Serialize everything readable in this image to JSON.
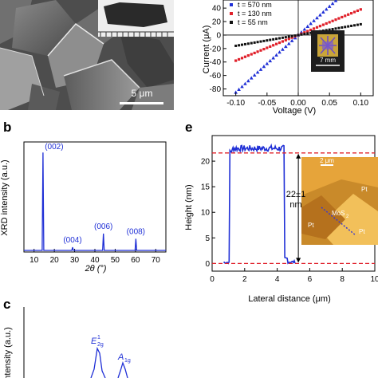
{
  "panel_a": {
    "scale_bar": "5 μm"
  },
  "panel_b": {
    "letter": "b",
    "ylabel": "XRD intensity (a.u.)",
    "xlabel": "2θ (°)",
    "xticks": [
      "10",
      "20",
      "30",
      "40",
      "50",
      "60",
      "70"
    ],
    "peaks": [
      {
        "label": "(002)",
        "x": 14.4,
        "h": 0.93
      },
      {
        "label": "(004)",
        "x": 29.0,
        "h": 0.03
      },
      {
        "label": "(006)",
        "x": 44.2,
        "h": 0.16
      },
      {
        "label": "(008)",
        "x": 60.2,
        "h": 0.11
      }
    ],
    "color": "#1f2fd6"
  },
  "panel_c": {
    "letter": "c",
    "ylabel": "Intensity (a.u.)",
    "peak_labels": [
      "E",
      "1",
      "2g",
      "A",
      "1g"
    ]
  },
  "panel_d": {
    "ylabel": "Current (μA)",
    "xlabel": "Voltage (V)",
    "xticks": [
      "-0.10",
      "-0.05",
      "0.00",
      "0.05",
      "0.10"
    ],
    "yticks": [
      "40",
      "20",
      "0",
      "-20",
      "-40",
      "-60",
      "-80"
    ],
    "legend": [
      {
        "label": "t = 570 nm",
        "color": "#1f2fd6",
        "slope": 850
      },
      {
        "label": "t = 130 nm",
        "color": "#e0202a",
        "slope": 380
      },
      {
        "label": "t = 55 nm",
        "color": "#111111",
        "slope": 160
      }
    ],
    "inset_scale": "7 mm"
  },
  "panel_e": {
    "letter": "e",
    "ylabel": "Height (nm)",
    "xlabel": "Lateral distance (μm)",
    "xticks": [
      "0",
      "2",
      "4",
      "6",
      "8",
      "10"
    ],
    "yticks": [
      "0",
      "5",
      "10",
      "15",
      "20"
    ],
    "annotation": [
      "22±1",
      "nm"
    ],
    "step_height_nm": 22,
    "inset": {
      "scale": "2 μm",
      "labels": [
        "Pt",
        "MoS",
        "2",
        "Pt",
        "Pt"
      ]
    },
    "line_color": "#1f2fd6",
    "guide_color": "#e0202a"
  }
}
